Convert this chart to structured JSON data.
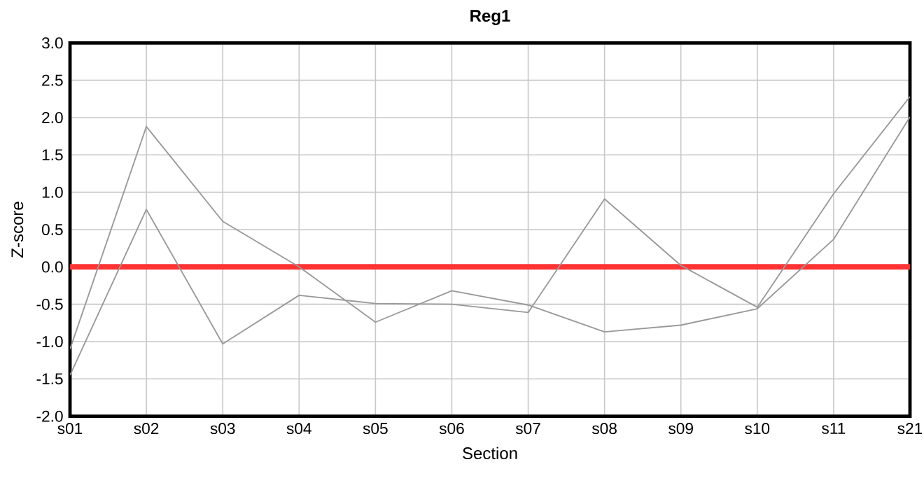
{
  "chart_data": {
    "type": "line",
    "title": "Reg1",
    "xlabel": "Section",
    "ylabel": "Z-score",
    "categories": [
      "s01",
      "s02",
      "s03",
      "s04",
      "s05",
      "s06",
      "s07",
      "s08",
      "s09",
      "s10",
      "s11",
      "s21"
    ],
    "series": [
      {
        "color": "#999999",
        "values": [
          -1.1,
          1.88,
          0.61,
          0.0,
          -0.74,
          -0.32,
          -0.51,
          -0.87,
          -0.78,
          -0.56,
          0.37,
          2.01
        ]
      },
      {
        "color": "#999999",
        "values": [
          -1.45,
          0.77,
          -1.03,
          -0.38,
          -0.49,
          -0.5,
          -0.61,
          0.91,
          0.02,
          -0.54,
          0.98,
          2.28
        ]
      }
    ],
    "ylim": [
      -2,
      3
    ],
    "yticks": [
      {
        "value": -2,
        "label": "-2.0"
      },
      {
        "value": -1.5,
        "label": "-1.5"
      },
      {
        "value": -1,
        "label": "-1.0"
      },
      {
        "value": -0.5,
        "label": "-0.5"
      },
      {
        "value": 0,
        "label": "0.0"
      },
      {
        "value": 0.5,
        "label": "0.5"
      },
      {
        "value": 1,
        "label": "1.0"
      },
      {
        "value": 1.5,
        "label": "1.5"
      },
      {
        "value": 2,
        "label": "2.0"
      },
      {
        "value": 2.5,
        "label": "2.5"
      },
      {
        "value": 3,
        "label": "3.0"
      }
    ],
    "ref_lines": [
      {
        "axis": "y",
        "value": 0,
        "color": "#ff3333"
      }
    ],
    "grid": true,
    "marker": "none",
    "line_style": "solid"
  }
}
